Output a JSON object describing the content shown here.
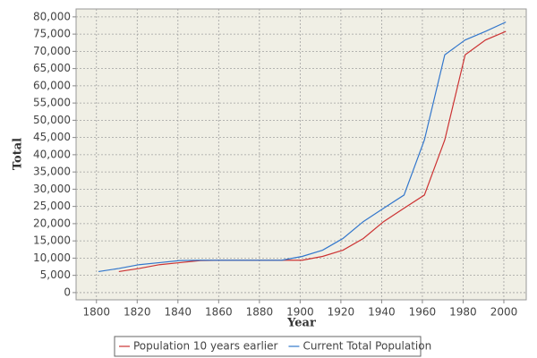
{
  "chart_data": {
    "type": "line",
    "x_label": "Year",
    "y_label": "Total",
    "xlim": [
      1790,
      2011
    ],
    "ylim": [
      -2100,
      82300
    ],
    "xticks": [
      1800,
      1820,
      1840,
      1860,
      1880,
      1900,
      1920,
      1940,
      1960,
      1980,
      2000
    ],
    "yticks": [
      0,
      {
        "value": 5000,
        "label": "5,000"
      },
      {
        "value": 10000,
        "label": "10,000"
      },
      {
        "value": 15000,
        "label": "15,000"
      },
      {
        "value": 20000,
        "label": "20,000"
      },
      {
        "value": 25000,
        "label": "25,000"
      },
      {
        "value": 30000,
        "label": "30,000"
      },
      {
        "value": 35000,
        "label": "35,000"
      },
      {
        "value": 40000,
        "label": "40,000"
      },
      {
        "value": 45000,
        "label": "45,000"
      },
      {
        "value": 50000,
        "label": "50,000"
      },
      {
        "value": 55000,
        "label": "55,000"
      },
      {
        "value": 60000,
        "label": "60,000"
      },
      {
        "value": 65000,
        "label": "65,000"
      },
      {
        "value": 70000,
        "label": "70,000"
      },
      {
        "value": 75000,
        "label": "75,000"
      },
      {
        "value": 80000,
        "label": "80,000"
      }
    ],
    "grid": true,
    "series": [
      {
        "name": "Population 10 years earlier",
        "color": "#cc3333",
        "x": [
          1811,
          1821,
          1831,
          1841,
          1851,
          1861,
          1871,
          1881,
          1891,
          1901,
          1911,
          1921,
          1931,
          1941,
          1951,
          1961,
          1971,
          1981,
          1991,
          2001
        ],
        "values": [
          6100,
          7000,
          8100,
          8700,
          9300,
          9400,
          9400,
          9400,
          9400,
          9400,
          10500,
          12300,
          15700,
          20600,
          24500,
          28300,
          44300,
          69000,
          73300,
          75800
        ]
      },
      {
        "name": "Current Total Population",
        "color": "#3377cc",
        "x": [
          1801,
          1811,
          1821,
          1831,
          1841,
          1851,
          1861,
          1871,
          1881,
          1891,
          1901,
          1911,
          1921,
          1931,
          1941,
          1951,
          1961,
          1971,
          1981,
          1991,
          2001
        ],
        "values": [
          6100,
          7000,
          8100,
          8700,
          9300,
          9400,
          9400,
          9400,
          9400,
          9400,
          10500,
          12300,
          15700,
          20600,
          24500,
          28300,
          44300,
          69000,
          73300,
          75800,
          78500
        ]
      }
    ]
  }
}
